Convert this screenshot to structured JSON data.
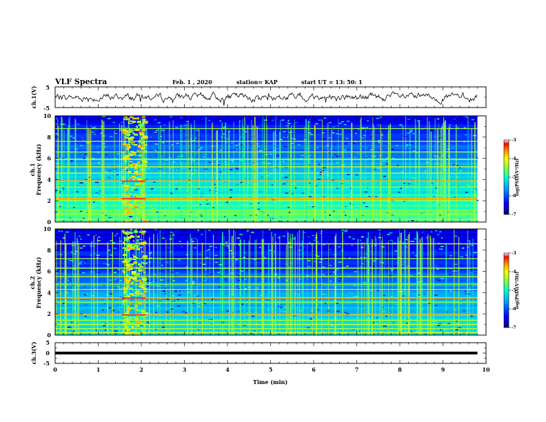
{
  "header": {
    "title": "VLF Spectra",
    "date": "Feb. 1 , 2020",
    "station": "station= KAP",
    "start_time": "start UT = 13: 50: 1"
  },
  "chart_data": [
    {
      "type": "line",
      "panel": "ch1-waveform",
      "ylabel": "ch.1(V)",
      "ylim": [
        -5,
        5
      ],
      "y_ticks": [
        "5",
        "-5"
      ],
      "xlim": [
        0,
        10
      ],
      "x_data_end": 9.8,
      "series": [
        {
          "trace": "noisy waveform, mean about 0 V, swings about ±3 V",
          "color": "#000000"
        }
      ]
    },
    {
      "type": "heatmap",
      "panel": "ch1-spectrogram",
      "ylabel_line1": "ch.1",
      "ylabel_line2": "Frequency (kHz)",
      "ylim": [
        0,
        10
      ],
      "y_ticks": [
        "0",
        "2",
        "4",
        "6",
        "8",
        "10"
      ],
      "xlim": [
        0,
        10
      ],
      "x_data_end": 9.8,
      "colorbar": {
        "label": "log(PSD)(V²/Hz)",
        "ticks": [
          "-3",
          "-4",
          "-5",
          "-6",
          "-7"
        ],
        "range": [
          -7,
          -3
        ]
      },
      "features": {
        "lines_khz": [
          0.25,
          0.75,
          1.1,
          1.55,
          2.0,
          2.2,
          2.5,
          3.3,
          3.85,
          4.6,
          5.2,
          5.9,
          6.6,
          7.6,
          8.8
        ],
        "strong_lines_khz": [
          2.2,
          3.85
        ],
        "broadband_burst_min": [
          1.55,
          2.1
        ],
        "background_high_khz": -6.6,
        "background_low_khz": -5.2
      }
    },
    {
      "type": "heatmap",
      "panel": "ch2-spectrogram",
      "ylabel_line1": "ch.2",
      "ylabel_line2": "Frequency (kHz)",
      "ylim": [
        0,
        10
      ],
      "y_ticks": [
        "0",
        "2",
        "4",
        "6",
        "8",
        "10"
      ],
      "xlim": [
        0,
        10
      ],
      "x_data_end": 9.8,
      "colorbar": {
        "label": "log(PSD)(V²/Hz)",
        "ticks": [
          "-3",
          "-4",
          "-5",
          "-6",
          "-7"
        ],
        "range": [
          -7,
          -3
        ]
      },
      "features": {
        "lines_khz": [
          0.25,
          0.6,
          1.0,
          1.4,
          1.9,
          3.1,
          3.5,
          4.3,
          4.8,
          5.5,
          6.3,
          7.2,
          8.6
        ],
        "strong_lines_khz": [
          1.9,
          3.5
        ],
        "broadband_burst_min": [
          1.55,
          2.1
        ],
        "background_high_khz": -6.7,
        "background_low_khz": -5.6
      }
    },
    {
      "type": "line",
      "panel": "ch3-waveform",
      "ylabel": "ch.3(V)",
      "ylim": [
        -5,
        5
      ],
      "y_ticks": [
        "5",
        "0",
        "-5"
      ],
      "xlim": [
        0,
        10
      ],
      "x_data_end": 9.8,
      "xlabel": "Time (min)",
      "x_ticks": [
        "0",
        "1",
        "2",
        "3",
        "4",
        "5",
        "6",
        "7",
        "8",
        "9",
        "10"
      ],
      "series": [
        {
          "trace": "flat at about 0 V",
          "value": 0,
          "color": "#000000"
        }
      ]
    }
  ],
  "colors": {
    "colormap": [
      "#00007a",
      "#0000ff",
      "#00a0ff",
      "#00ffd0",
      "#80ff40",
      "#ffff00",
      "#ff8000",
      "#ff0000",
      "#ffffff"
    ],
    "axis": "#000000",
    "background": "#ffffff"
  }
}
